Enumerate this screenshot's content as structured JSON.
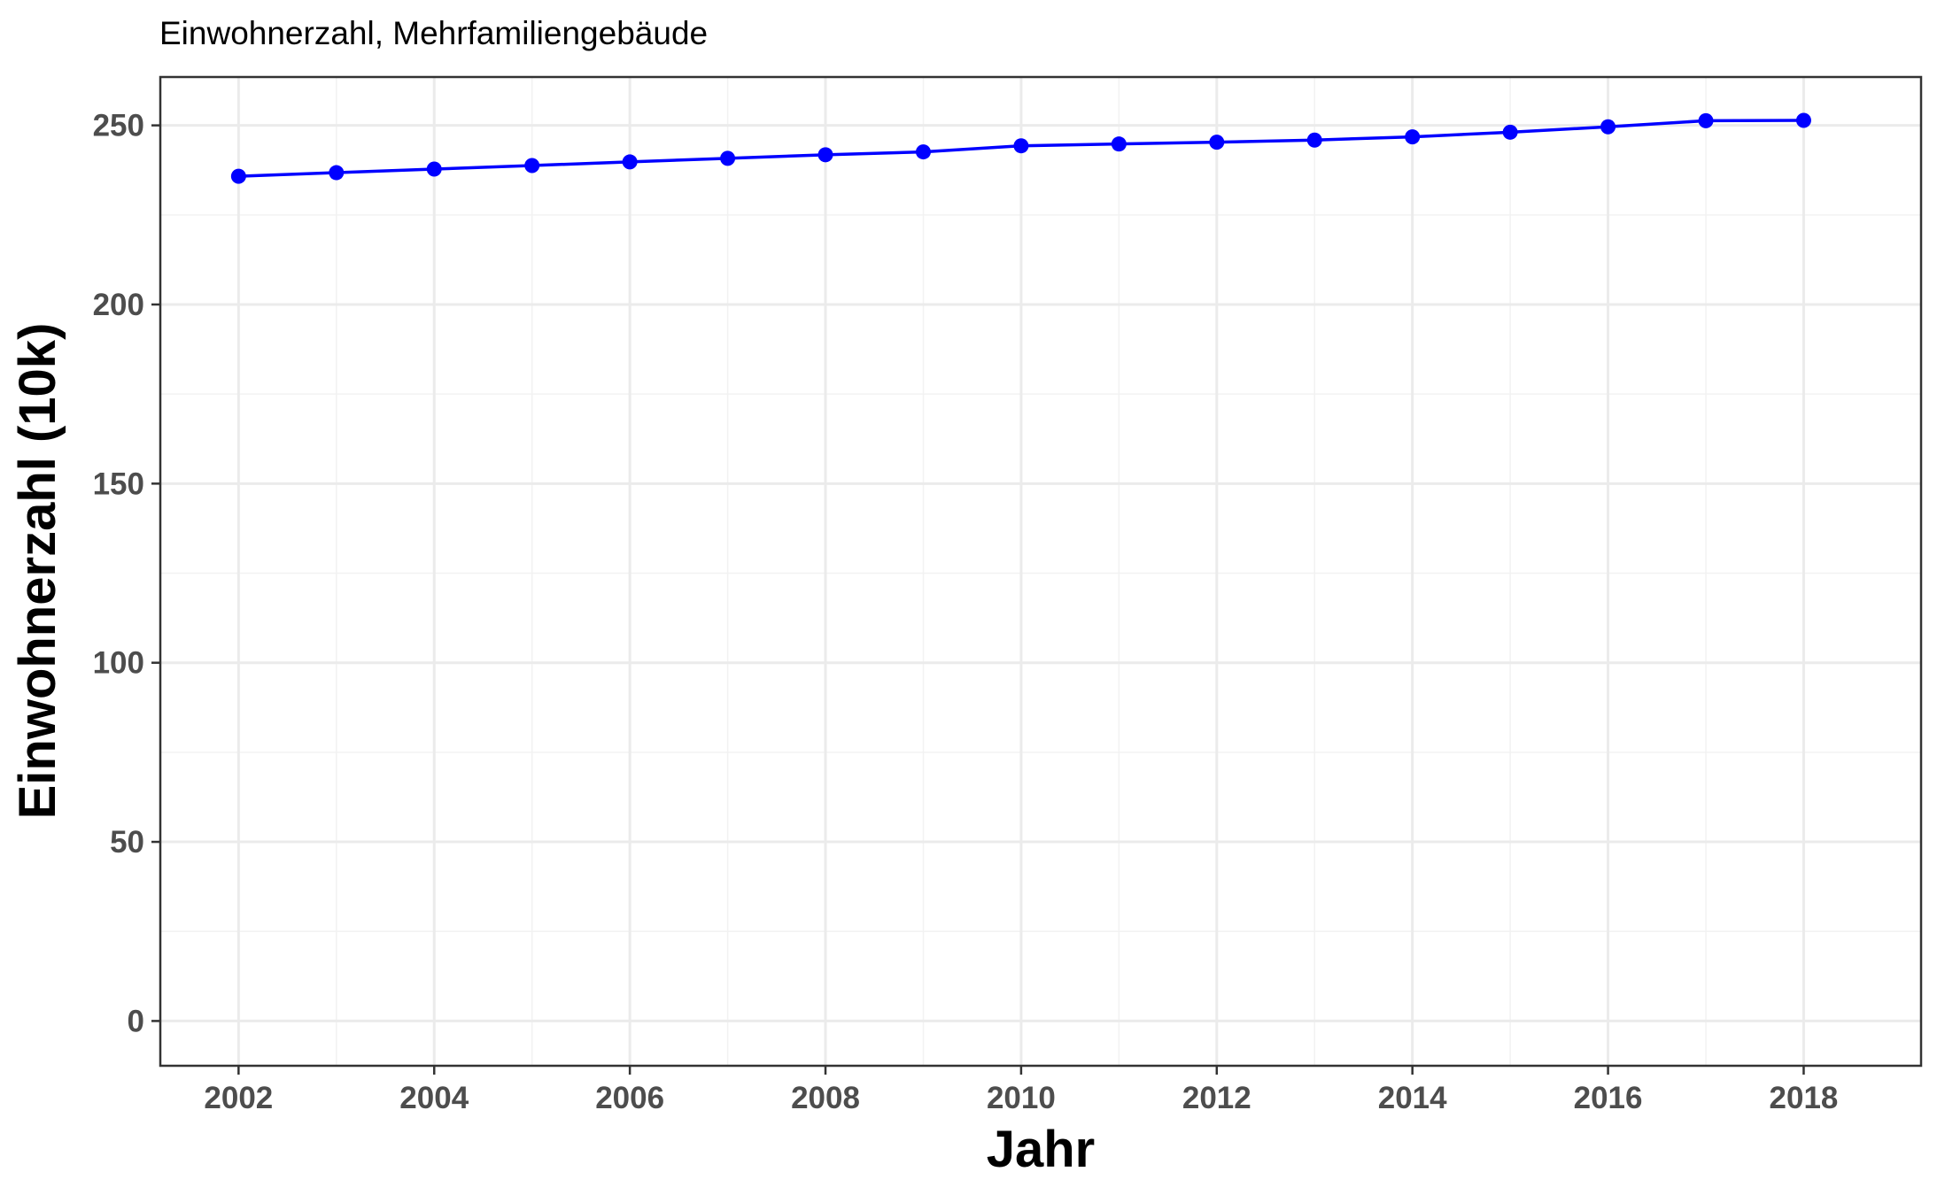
{
  "chart_data": {
    "type": "line",
    "title": "Einwohnerzahl, Mehrfamiliengebäude",
    "xlabel": "Jahr",
    "ylabel": "Einwohnerzahl (10k)",
    "x": [
      2002,
      2003,
      2004,
      2005,
      2006,
      2007,
      2008,
      2009,
      2010,
      2011,
      2012,
      2013,
      2014,
      2015,
      2016,
      2017,
      2018
    ],
    "series": [
      {
        "values": [
          235.8,
          236.8,
          237.8,
          238.8,
          239.8,
          240.8,
          241.8,
          242.6,
          244.3,
          244.8,
          245.3,
          245.9,
          246.8,
          248.1,
          249.6,
          251.3,
          251.4
        ],
        "color": "#0000ff"
      }
    ],
    "xticks": [
      "2002",
      "2004",
      "2006",
      "2008",
      "2010",
      "2012",
      "2014",
      "2016",
      "2018"
    ],
    "yticks": [
      "0",
      "50",
      "100",
      "150",
      "200",
      "250"
    ],
    "xlim": [
      2001.2,
      2019.2
    ],
    "ylim": [
      -12.5,
      263.5
    ],
    "grid": true,
    "legend": "none"
  }
}
